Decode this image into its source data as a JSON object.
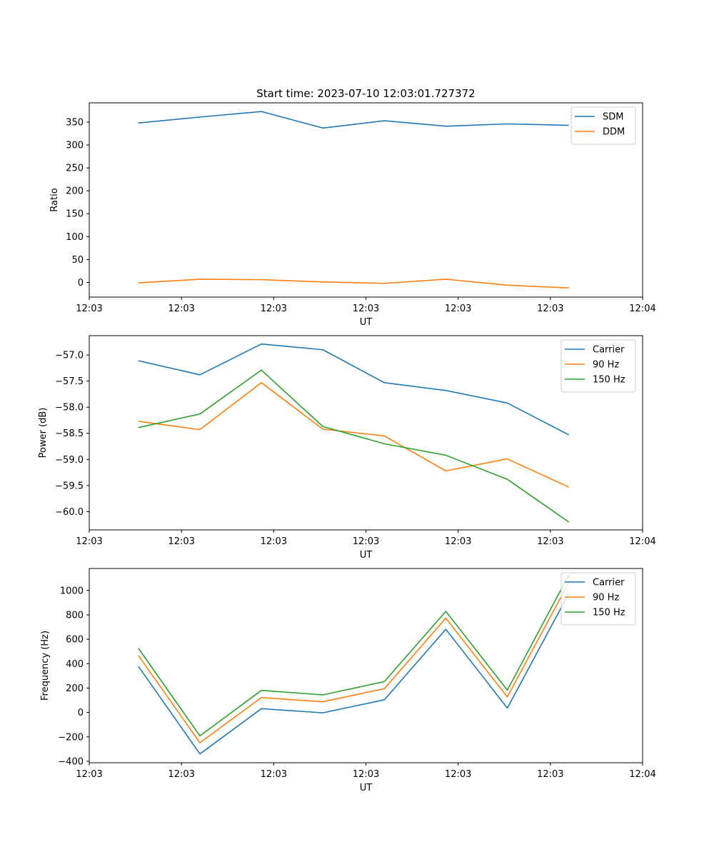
{
  "title": "Start time: 2023-07-10 12:03:01.727372",
  "colors": {
    "blue": "#1f77b4",
    "orange": "#ff7f0e",
    "green": "#2ca02c"
  },
  "chart_data": [
    {
      "type": "line",
      "xlabel": "UT",
      "ylabel": "Ratio",
      "x": [
        1,
        2,
        3,
        4,
        5,
        6,
        7,
        8
      ],
      "xlim": [
        0.2,
        9.2
      ],
      "xticks": [
        0.2,
        1.7,
        3.2,
        4.7,
        6.2,
        7.7,
        9.2
      ],
      "xtick_labels": [
        "12:03",
        "12:03",
        "12:03",
        "12:03",
        "12:03",
        "12:03",
        "12:04"
      ],
      "ylim": [
        -32,
        392
      ],
      "yticks": [
        0,
        50,
        100,
        150,
        200,
        250,
        300,
        350
      ],
      "ytick_labels": [
        "0",
        "50",
        "100",
        "150",
        "200",
        "250",
        "300",
        "350"
      ],
      "legend_position": "top-right",
      "series": [
        {
          "name": "SDM",
          "color": "#1f77b4",
          "values": [
            348,
            361,
            373,
            337,
            353,
            341,
            346,
            343
          ]
        },
        {
          "name": "DDM",
          "color": "#ff7f0e",
          "values": [
            -1,
            7,
            6,
            1,
            -2,
            7,
            -6,
            -12
          ]
        }
      ]
    },
    {
      "type": "line",
      "xlabel": "UT",
      "ylabel": "Power (dB)",
      "x": [
        1,
        2,
        3,
        4,
        5,
        6,
        7,
        8
      ],
      "xlim": [
        0.2,
        9.2
      ],
      "xticks": [
        0.2,
        1.7,
        3.2,
        4.7,
        6.2,
        7.7,
        9.2
      ],
      "xtick_labels": [
        "12:03",
        "12:03",
        "12:03",
        "12:03",
        "12:03",
        "12:03",
        "12:04"
      ],
      "ylim": [
        -60.35,
        -56.63
      ],
      "yticks": [
        -60.0,
        -59.5,
        -59.0,
        -58.5,
        -58.0,
        -57.5,
        -57.0
      ],
      "ytick_labels": [
        "−60.0",
        "−59.5",
        "−59.0",
        "−58.5",
        "−58.0",
        "−57.5",
        "−57.0"
      ],
      "legend_position": "top-right",
      "series": [
        {
          "name": "Carrier",
          "color": "#1f77b4",
          "values": [
            -57.11,
            -57.38,
            -56.79,
            -56.9,
            -57.53,
            -57.68,
            -57.92,
            -58.53
          ]
        },
        {
          "name": "90 Hz",
          "color": "#ff7f0e",
          "values": [
            -58.27,
            -58.43,
            -57.53,
            -58.42,
            -58.55,
            -59.22,
            -58.99,
            -59.53
          ]
        },
        {
          "name": "150 Hz",
          "color": "#2ca02c",
          "values": [
            -58.39,
            -58.13,
            -57.29,
            -58.37,
            -58.7,
            -58.92,
            -59.38,
            -60.2
          ]
        }
      ]
    },
    {
      "type": "line",
      "xlabel": "UT",
      "ylabel": "Frequency (Hz)",
      "x": [
        1,
        2,
        3,
        4,
        5,
        6,
        7,
        8
      ],
      "xlim": [
        0.2,
        9.2
      ],
      "xticks": [
        0.2,
        1.7,
        3.2,
        4.7,
        6.2,
        7.7,
        9.2
      ],
      "xtick_labels": [
        "12:03",
        "12:03",
        "12:03",
        "12:03",
        "12:03",
        "12:03",
        "12:04"
      ],
      "ylim": [
        -412,
        1180
      ],
      "yticks": [
        -400,
        -200,
        0,
        200,
        400,
        600,
        800,
        1000
      ],
      "ytick_labels": [
        "−400",
        "−200",
        "0",
        "200",
        "400",
        "600",
        "800",
        "1000"
      ],
      "legend_position": "top-right",
      "series": [
        {
          "name": "Carrier",
          "color": "#1f77b4",
          "values": [
            378,
            -340,
            31,
            -3,
            104,
            682,
            36,
            975
          ]
        },
        {
          "name": "90 Hz",
          "color": "#ff7f0e",
          "values": [
            467,
            -248,
            122,
            88,
            195,
            773,
            127,
            1066
          ]
        },
        {
          "name": "150 Hz",
          "color": "#2ca02c",
          "values": [
            526,
            -192,
            181,
            144,
            253,
            829,
            183,
            1126
          ]
        }
      ]
    }
  ]
}
